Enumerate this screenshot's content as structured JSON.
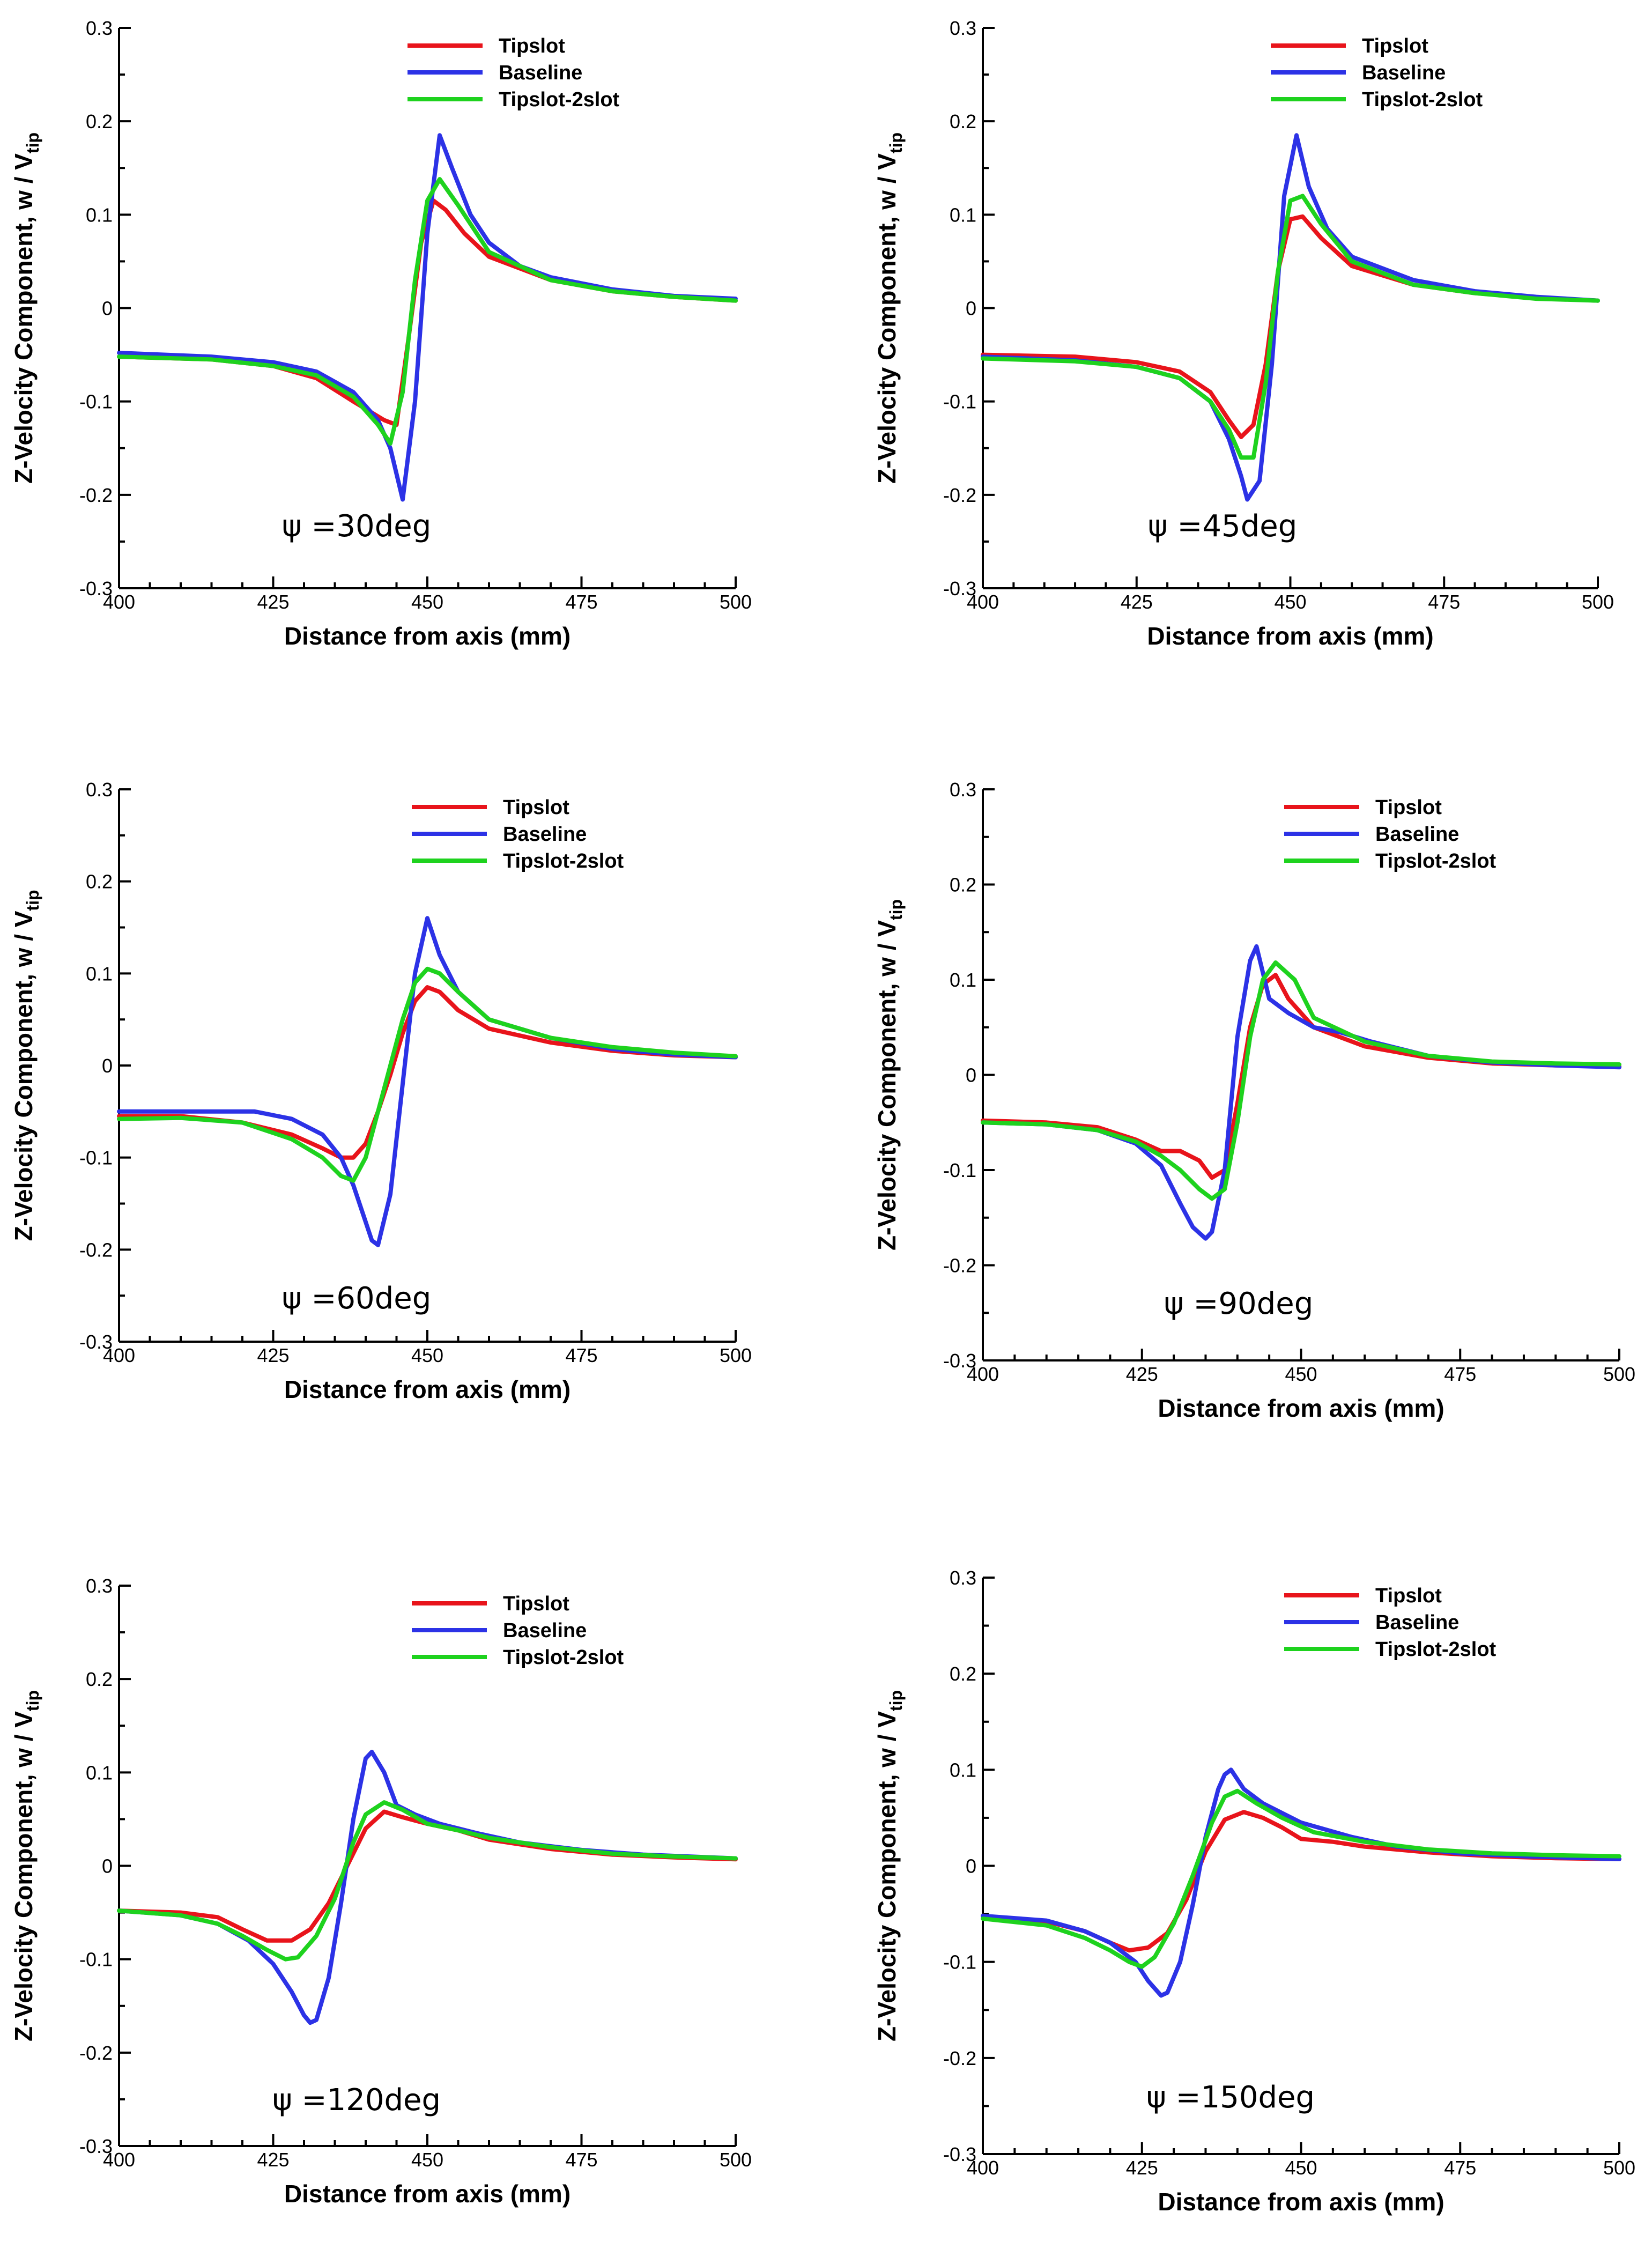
{
  "colors": {
    "Tipslot": "#e8141b",
    "Baseline": "#2c32e6",
    "Tipslot-2slot": "#1ed21e"
  },
  "chart_data": [
    {
      "type": "line",
      "panel_label": "ψ =30deg",
      "xlabel": "Distance from axis (mm)",
      "ylabel_main": "Z-Velocity Component, w / V",
      "ylabel_sub": "tip",
      "xlim": [
        400,
        500
      ],
      "ylim": [
        -0.3,
        0.3
      ],
      "xticks": [
        "400",
        "425",
        "450",
        "475",
        "500"
      ],
      "yticks": [
        "-0.3",
        "-0.2",
        "-0.1",
        "0",
        "0.1",
        "0.2",
        "0.3"
      ],
      "legend": [
        "Tipslot",
        "Baseline",
        "Tipslot-2slot"
      ],
      "series": [
        {
          "name": "Tipslot",
          "x": [
            400,
            415,
            425,
            432,
            438,
            443,
            445,
            447,
            449,
            451,
            453,
            456,
            460,
            470,
            480,
            490,
            500
          ],
          "y": [
            -0.052,
            -0.055,
            -0.062,
            -0.075,
            -0.1,
            -0.12,
            -0.125,
            -0.03,
            0.07,
            0.115,
            0.105,
            0.08,
            0.055,
            0.03,
            0.018,
            0.012,
            0.008
          ]
        },
        {
          "name": "Baseline",
          "x": [
            400,
            415,
            425,
            432,
            438,
            442,
            444,
            446,
            448,
            450,
            452,
            454,
            457,
            460,
            465,
            470,
            480,
            490,
            500
          ],
          "y": [
            -0.048,
            -0.052,
            -0.058,
            -0.068,
            -0.09,
            -0.12,
            -0.15,
            -0.205,
            -0.1,
            0.08,
            0.185,
            0.15,
            0.1,
            0.07,
            0.045,
            0.033,
            0.02,
            0.013,
            0.01
          ]
        },
        {
          "name": "Tipslot-2slot",
          "x": [
            400,
            415,
            425,
            432,
            438,
            442,
            444,
            446,
            448,
            450,
            452,
            455,
            460,
            470,
            480,
            490,
            500
          ],
          "y": [
            -0.052,
            -0.055,
            -0.062,
            -0.072,
            -0.095,
            -0.125,
            -0.145,
            -0.09,
            0.03,
            0.115,
            0.138,
            0.11,
            0.06,
            0.03,
            0.018,
            0.012,
            0.008
          ]
        }
      ]
    },
    {
      "type": "line",
      "panel_label": "ψ =45deg",
      "xlabel": "Distance from axis (mm)",
      "ylabel_main": "Z-Velocity Component, w / V",
      "ylabel_sub": "tip",
      "xlim": [
        400,
        500
      ],
      "ylim": [
        -0.3,
        0.3
      ],
      "xticks": [
        "400",
        "425",
        "450",
        "475",
        "500"
      ],
      "yticks": [
        "-0.3",
        "-0.2",
        "-0.1",
        "0",
        "0.1",
        "0.2",
        "0.3"
      ],
      "legend": [
        "Tipslot",
        "Baseline",
        "Tipslot-2slot"
      ],
      "series": [
        {
          "name": "Tipslot",
          "x": [
            400,
            415,
            425,
            432,
            437,
            440,
            442,
            444,
            446,
            448,
            450,
            452,
            455,
            460,
            470,
            480,
            490,
            500
          ],
          "y": [
            -0.05,
            -0.052,
            -0.058,
            -0.068,
            -0.09,
            -0.12,
            -0.138,
            -0.125,
            -0.06,
            0.04,
            0.095,
            0.098,
            0.075,
            0.045,
            0.025,
            0.016,
            0.011,
            0.008
          ]
        },
        {
          "name": "Baseline",
          "x": [
            400,
            415,
            425,
            432,
            437,
            440,
            442,
            443,
            445,
            447,
            449,
            451,
            453,
            456,
            460,
            470,
            480,
            490,
            500
          ],
          "y": [
            -0.052,
            -0.056,
            -0.063,
            -0.075,
            -0.1,
            -0.14,
            -0.18,
            -0.205,
            -0.185,
            -0.06,
            0.12,
            0.185,
            0.13,
            0.085,
            0.055,
            0.03,
            0.018,
            0.012,
            0.008
          ]
        },
        {
          "name": "Tipslot-2slot",
          "x": [
            400,
            415,
            425,
            432,
            437,
            440,
            442,
            444,
            446,
            448,
            450,
            452,
            455,
            460,
            470,
            480,
            490,
            500
          ],
          "y": [
            -0.054,
            -0.057,
            -0.063,
            -0.075,
            -0.1,
            -0.13,
            -0.16,
            -0.16,
            -0.08,
            0.04,
            0.115,
            0.12,
            0.09,
            0.05,
            0.025,
            0.016,
            0.01,
            0.008
          ]
        }
      ]
    },
    {
      "type": "line",
      "panel_label": "ψ =60deg",
      "xlabel": "Distance from axis (mm)",
      "ylabel_main": "Z-Velocity Component, w / V",
      "ylabel_sub": "tip",
      "xlim": [
        400,
        500
      ],
      "ylim": [
        -0.3,
        0.3
      ],
      "xticks": [
        "400",
        "425",
        "450",
        "475",
        "500"
      ],
      "yticks": [
        "-0.3",
        "-0.2",
        "-0.1",
        "0",
        "0.1",
        "0.2",
        "0.3"
      ],
      "legend": [
        "Tipslot",
        "Baseline",
        "Tipslot-2slot"
      ],
      "series": [
        {
          "name": "Tipslot",
          "x": [
            400,
            410,
            420,
            428,
            433,
            436,
            438,
            440,
            442,
            444,
            446,
            448,
            450,
            452,
            455,
            460,
            470,
            480,
            490,
            500
          ],
          "y": [
            -0.055,
            -0.055,
            -0.062,
            -0.075,
            -0.09,
            -0.1,
            -0.1,
            -0.085,
            -0.05,
            -0.01,
            0.035,
            0.07,
            0.085,
            0.08,
            0.06,
            0.04,
            0.025,
            0.016,
            0.011,
            0.009
          ]
        },
        {
          "name": "Baseline",
          "x": [
            400,
            410,
            418,
            422,
            428,
            433,
            436,
            438,
            440,
            441,
            442,
            444,
            446,
            448,
            450,
            452,
            455,
            460,
            470,
            480,
            490,
            500
          ],
          "y": [
            -0.05,
            -0.05,
            -0.05,
            -0.05,
            -0.058,
            -0.075,
            -0.1,
            -0.13,
            -0.17,
            -0.19,
            -0.195,
            -0.14,
            -0.02,
            0.1,
            0.16,
            0.12,
            0.08,
            0.05,
            0.03,
            0.018,
            0.012,
            0.009
          ]
        },
        {
          "name": "Tipslot-2slot",
          "x": [
            400,
            410,
            420,
            428,
            433,
            436,
            438,
            440,
            442,
            444,
            446,
            448,
            450,
            452,
            455,
            460,
            470,
            480,
            490,
            500
          ],
          "y": [
            -0.058,
            -0.057,
            -0.062,
            -0.08,
            -0.1,
            -0.12,
            -0.125,
            -0.1,
            -0.05,
            0.0,
            0.05,
            0.09,
            0.105,
            0.1,
            0.08,
            0.05,
            0.03,
            0.02,
            0.014,
            0.01
          ]
        }
      ]
    },
    {
      "type": "line",
      "panel_label": "ψ =90deg",
      "xlabel": "Distance from axis (mm)",
      "ylabel_main": "Z-Velocity Component, w / V",
      "ylabel_sub": "tip",
      "xlim": [
        400,
        500
      ],
      "ylim": [
        -0.3,
        0.3
      ],
      "xticks": [
        "400",
        "425",
        "450",
        "475",
        "500"
      ],
      "yticks": [
        "-0.3",
        "-0.2",
        "-0.1",
        "0",
        "0.1",
        "0.2",
        "0.3"
      ],
      "legend": [
        "Tipslot",
        "Baseline",
        "Tipslot-2slot"
      ],
      "series": [
        {
          "name": "Tipslot",
          "x": [
            400,
            410,
            418,
            424,
            428,
            431,
            434,
            436,
            438,
            440,
            442,
            444,
            446,
            448,
            452,
            460,
            470,
            480,
            490,
            500
          ],
          "y": [
            -0.048,
            -0.05,
            -0.055,
            -0.068,
            -0.08,
            -0.08,
            -0.09,
            -0.108,
            -0.1,
            -0.03,
            0.05,
            0.095,
            0.105,
            0.08,
            0.05,
            0.03,
            0.018,
            0.012,
            0.01,
            0.009
          ]
        },
        {
          "name": "Baseline",
          "x": [
            400,
            410,
            418,
            424,
            428,
            431,
            433,
            435,
            436,
            438,
            440,
            442,
            443,
            445,
            448,
            452,
            456,
            461,
            470,
            480,
            490,
            500
          ],
          "y": [
            -0.05,
            -0.052,
            -0.058,
            -0.072,
            -0.095,
            -0.135,
            -0.16,
            -0.172,
            -0.165,
            -0.1,
            0.04,
            0.12,
            0.135,
            0.08,
            0.065,
            0.05,
            0.045,
            0.035,
            0.02,
            0.013,
            0.01,
            0.008
          ]
        },
        {
          "name": "Tipslot-2slot",
          "x": [
            400,
            410,
            418,
            424,
            428,
            431,
            434,
            436,
            438,
            440,
            442,
            444,
            446,
            449,
            452,
            460,
            470,
            480,
            490,
            500
          ],
          "y": [
            -0.05,
            -0.052,
            -0.058,
            -0.07,
            -0.085,
            -0.1,
            -0.12,
            -0.13,
            -0.12,
            -0.05,
            0.04,
            0.1,
            0.118,
            0.1,
            0.06,
            0.035,
            0.02,
            0.014,
            0.012,
            0.011
          ]
        }
      ]
    },
    {
      "type": "line",
      "panel_label": "ψ =120deg",
      "xlabel": "Distance from axis (mm)",
      "ylabel_main": "Z-Velocity Component, w / V",
      "ylabel_sub": "tip",
      "xlim": [
        400,
        500
      ],
      "ylim": [
        -0.3,
        0.3
      ],
      "xticks": [
        "400",
        "425",
        "450",
        "475",
        "500"
      ],
      "yticks": [
        "-0.3",
        "-0.2",
        "-0.1",
        "0",
        "0.1",
        "0.2",
        "0.3"
      ],
      "legend": [
        "Tipslot",
        "Baseline",
        "Tipslot-2slot"
      ],
      "series": [
        {
          "name": "Tipslot",
          "x": [
            400,
            410,
            416,
            420,
            424,
            428,
            431,
            434,
            437,
            440,
            443,
            446,
            450,
            455,
            460,
            470,
            480,
            490,
            500
          ],
          "y": [
            -0.048,
            -0.05,
            -0.055,
            -0.068,
            -0.08,
            -0.08,
            -0.068,
            -0.04,
            0.0,
            0.04,
            0.058,
            0.052,
            0.045,
            0.038,
            0.028,
            0.018,
            0.012,
            0.009,
            0.007
          ]
        },
        {
          "name": "Baseline",
          "x": [
            400,
            410,
            416,
            421,
            425,
            428,
            430,
            431,
            432,
            434,
            436,
            438,
            440,
            441,
            443,
            445,
            448,
            452,
            458,
            465,
            475,
            485,
            500
          ],
          "y": [
            -0.048,
            -0.053,
            -0.062,
            -0.08,
            -0.105,
            -0.135,
            -0.16,
            -0.168,
            -0.165,
            -0.12,
            -0.04,
            0.05,
            0.115,
            0.122,
            0.1,
            0.065,
            0.055,
            0.045,
            0.035,
            0.025,
            0.017,
            0.012,
            0.008
          ]
        },
        {
          "name": "Tipslot-2slot",
          "x": [
            400,
            410,
            416,
            420,
            424,
            427,
            429,
            432,
            435,
            438,
            440,
            443,
            446,
            450,
            455,
            460,
            470,
            480,
            490,
            500
          ],
          "y": [
            -0.048,
            -0.053,
            -0.062,
            -0.075,
            -0.09,
            -0.1,
            -0.098,
            -0.075,
            -0.035,
            0.025,
            0.055,
            0.068,
            0.06,
            0.045,
            0.038,
            0.03,
            0.02,
            0.013,
            0.01,
            0.008
          ]
        }
      ]
    },
    {
      "type": "line",
      "panel_label": "ψ =150deg",
      "xlabel": "Distance from axis (mm)",
      "ylabel_main": "Z-Velocity Component, w / V",
      "ylabel_sub": "tip",
      "xlim": [
        400,
        500
      ],
      "ylim": [
        -0.3,
        0.3
      ],
      "xticks": [
        "400",
        "425",
        "450",
        "475",
        "500"
      ],
      "yticks": [
        "-0.3",
        "-0.2",
        "-0.1",
        "0",
        "0.1",
        "0.2",
        "0.3"
      ],
      "legend": [
        "Tipslot",
        "Baseline",
        "Tipslot-2slot"
      ],
      "series": [
        {
          "name": "Tipslot",
          "x": [
            400,
            410,
            416,
            420,
            423,
            426,
            429,
            432,
            435,
            438,
            441,
            444,
            447,
            450,
            455,
            460,
            470,
            480,
            490,
            500
          ],
          "y": [
            -0.052,
            -0.058,
            -0.068,
            -0.08,
            -0.088,
            -0.085,
            -0.07,
            -0.035,
            0.015,
            0.048,
            0.056,
            0.05,
            0.04,
            0.028,
            0.025,
            0.02,
            0.014,
            0.01,
            0.008,
            0.007
          ]
        },
        {
          "name": "Baseline",
          "x": [
            400,
            410,
            416,
            420,
            424,
            426,
            428,
            429,
            431,
            433,
            435,
            437,
            438,
            439,
            441,
            444,
            450,
            458,
            465,
            475,
            485,
            500
          ],
          "y": [
            -0.052,
            -0.057,
            -0.068,
            -0.08,
            -0.1,
            -0.12,
            -0.135,
            -0.132,
            -0.1,
            -0.04,
            0.03,
            0.08,
            0.095,
            0.1,
            0.08,
            0.065,
            0.045,
            0.03,
            0.02,
            0.013,
            0.01,
            0.007
          ]
        },
        {
          "name": "Tipslot-2slot",
          "x": [
            400,
            410,
            416,
            420,
            423,
            425,
            427,
            430,
            433,
            436,
            438,
            440,
            443,
            447,
            452,
            460,
            470,
            480,
            490,
            500
          ],
          "y": [
            -0.055,
            -0.062,
            -0.075,
            -0.088,
            -0.1,
            -0.105,
            -0.095,
            -0.06,
            -0.01,
            0.045,
            0.072,
            0.078,
            0.065,
            0.05,
            0.035,
            0.025,
            0.017,
            0.013,
            0.011,
            0.01
          ]
        }
      ]
    }
  ]
}
